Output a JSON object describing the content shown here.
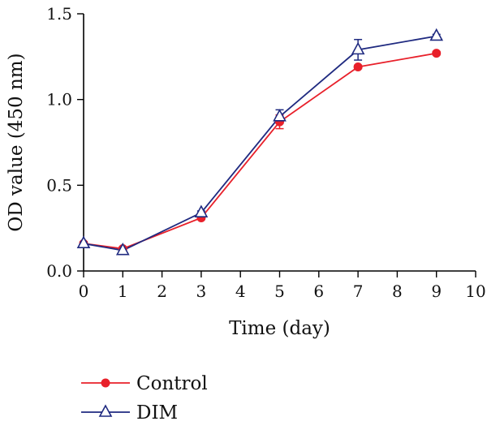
{
  "chart_data": {
    "type": "line",
    "title": "",
    "xlabel": "Time (day)",
    "ylabel": "OD value (450 nm)",
    "xlim": [
      0,
      10
    ],
    "ylim": [
      0,
      1.5
    ],
    "xticks": [
      0,
      1,
      2,
      3,
      4,
      5,
      6,
      7,
      8,
      9,
      10
    ],
    "xtick_labels": [
      "0",
      "1",
      "2",
      "3",
      "4",
      "5",
      "6",
      "7",
      "8",
      "9",
      "10"
    ],
    "yticks": [
      0,
      0.5,
      1.0,
      1.5
    ],
    "ytick_labels": [
      "0.0",
      "0.5",
      "1.0",
      "1.5"
    ],
    "grid": false,
    "legend_position": "bottom-left",
    "series": [
      {
        "name": "Control",
        "color": "#e8202a",
        "marker": "circle",
        "x": [
          0,
          1,
          3,
          5,
          7,
          9
        ],
        "values": [
          0.16,
          0.13,
          0.31,
          0.87,
          1.19,
          1.27
        ],
        "errors": [
          0.01,
          0.01,
          0.01,
          0.04,
          0.01,
          0.01
        ]
      },
      {
        "name": "DIM",
        "color": "#1f2a80",
        "marker": "triangle-open",
        "x": [
          0,
          1,
          3,
          5,
          7,
          9
        ],
        "values": [
          0.16,
          0.12,
          0.34,
          0.9,
          1.29,
          1.37
        ],
        "errors": [
          0.01,
          0.01,
          0.01,
          0.04,
          0.06,
          0.01
        ]
      }
    ]
  }
}
